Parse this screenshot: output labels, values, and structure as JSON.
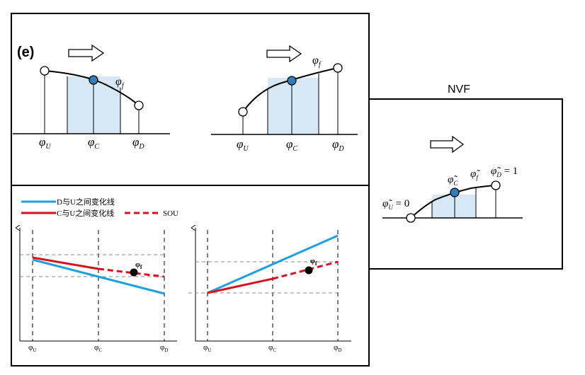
{
  "panel_label": "(e)",
  "nvf_title": "NVF",
  "top_left": {
    "phi_f": "φ",
    "phi_f_sub": "f",
    "phi_u": "φ",
    "phi_u_sub": "U",
    "phi_c": "φ",
    "phi_c_sub": "C",
    "phi_d": "φ",
    "phi_d_sub": "D"
  },
  "top_mid": {
    "phi_f": "φ",
    "phi_f_sub": "f",
    "phi_u": "φ",
    "phi_u_sub": "U",
    "phi_c": "φ",
    "phi_c_sub": "C",
    "phi_d": "φ",
    "phi_d_sub": "D"
  },
  "nvf": {
    "phi_u": "φ̃",
    "phi_u_sub": "U",
    "phi_u_val": " = 0",
    "phi_c": "φ̃",
    "phi_c_sub": "C",
    "phi_f": "φ̃",
    "phi_f_sub": "f",
    "phi_d": "φ̃",
    "phi_d_sub": "D",
    "phi_d_val": " = 1"
  },
  "legend": {
    "blue_label": "D与U之间变化线",
    "red_label": "C与U之间变化线",
    "sou_label": "SOU"
  },
  "bottom_left": {
    "point_label": "φ",
    "point_sub": "f",
    "tick_u": "φ",
    "tick_u_sub": "U",
    "tick_c": "φ",
    "tick_c_sub": "C",
    "tick_d": "φ",
    "tick_d_sub": "D"
  },
  "bottom_right": {
    "point_label": "φ",
    "point_sub": "f",
    "tick_u": "φ",
    "tick_u_sub": "U",
    "tick_c": "φ",
    "tick_c_sub": "C",
    "tick_d": "φ",
    "tick_d_sub": "D"
  },
  "colors": {
    "blue_line": "#1ba1e2",
    "red_line": "#d9101e",
    "cell_fill": "#d6e8f5",
    "node_fill": "#2f7fbf"
  }
}
